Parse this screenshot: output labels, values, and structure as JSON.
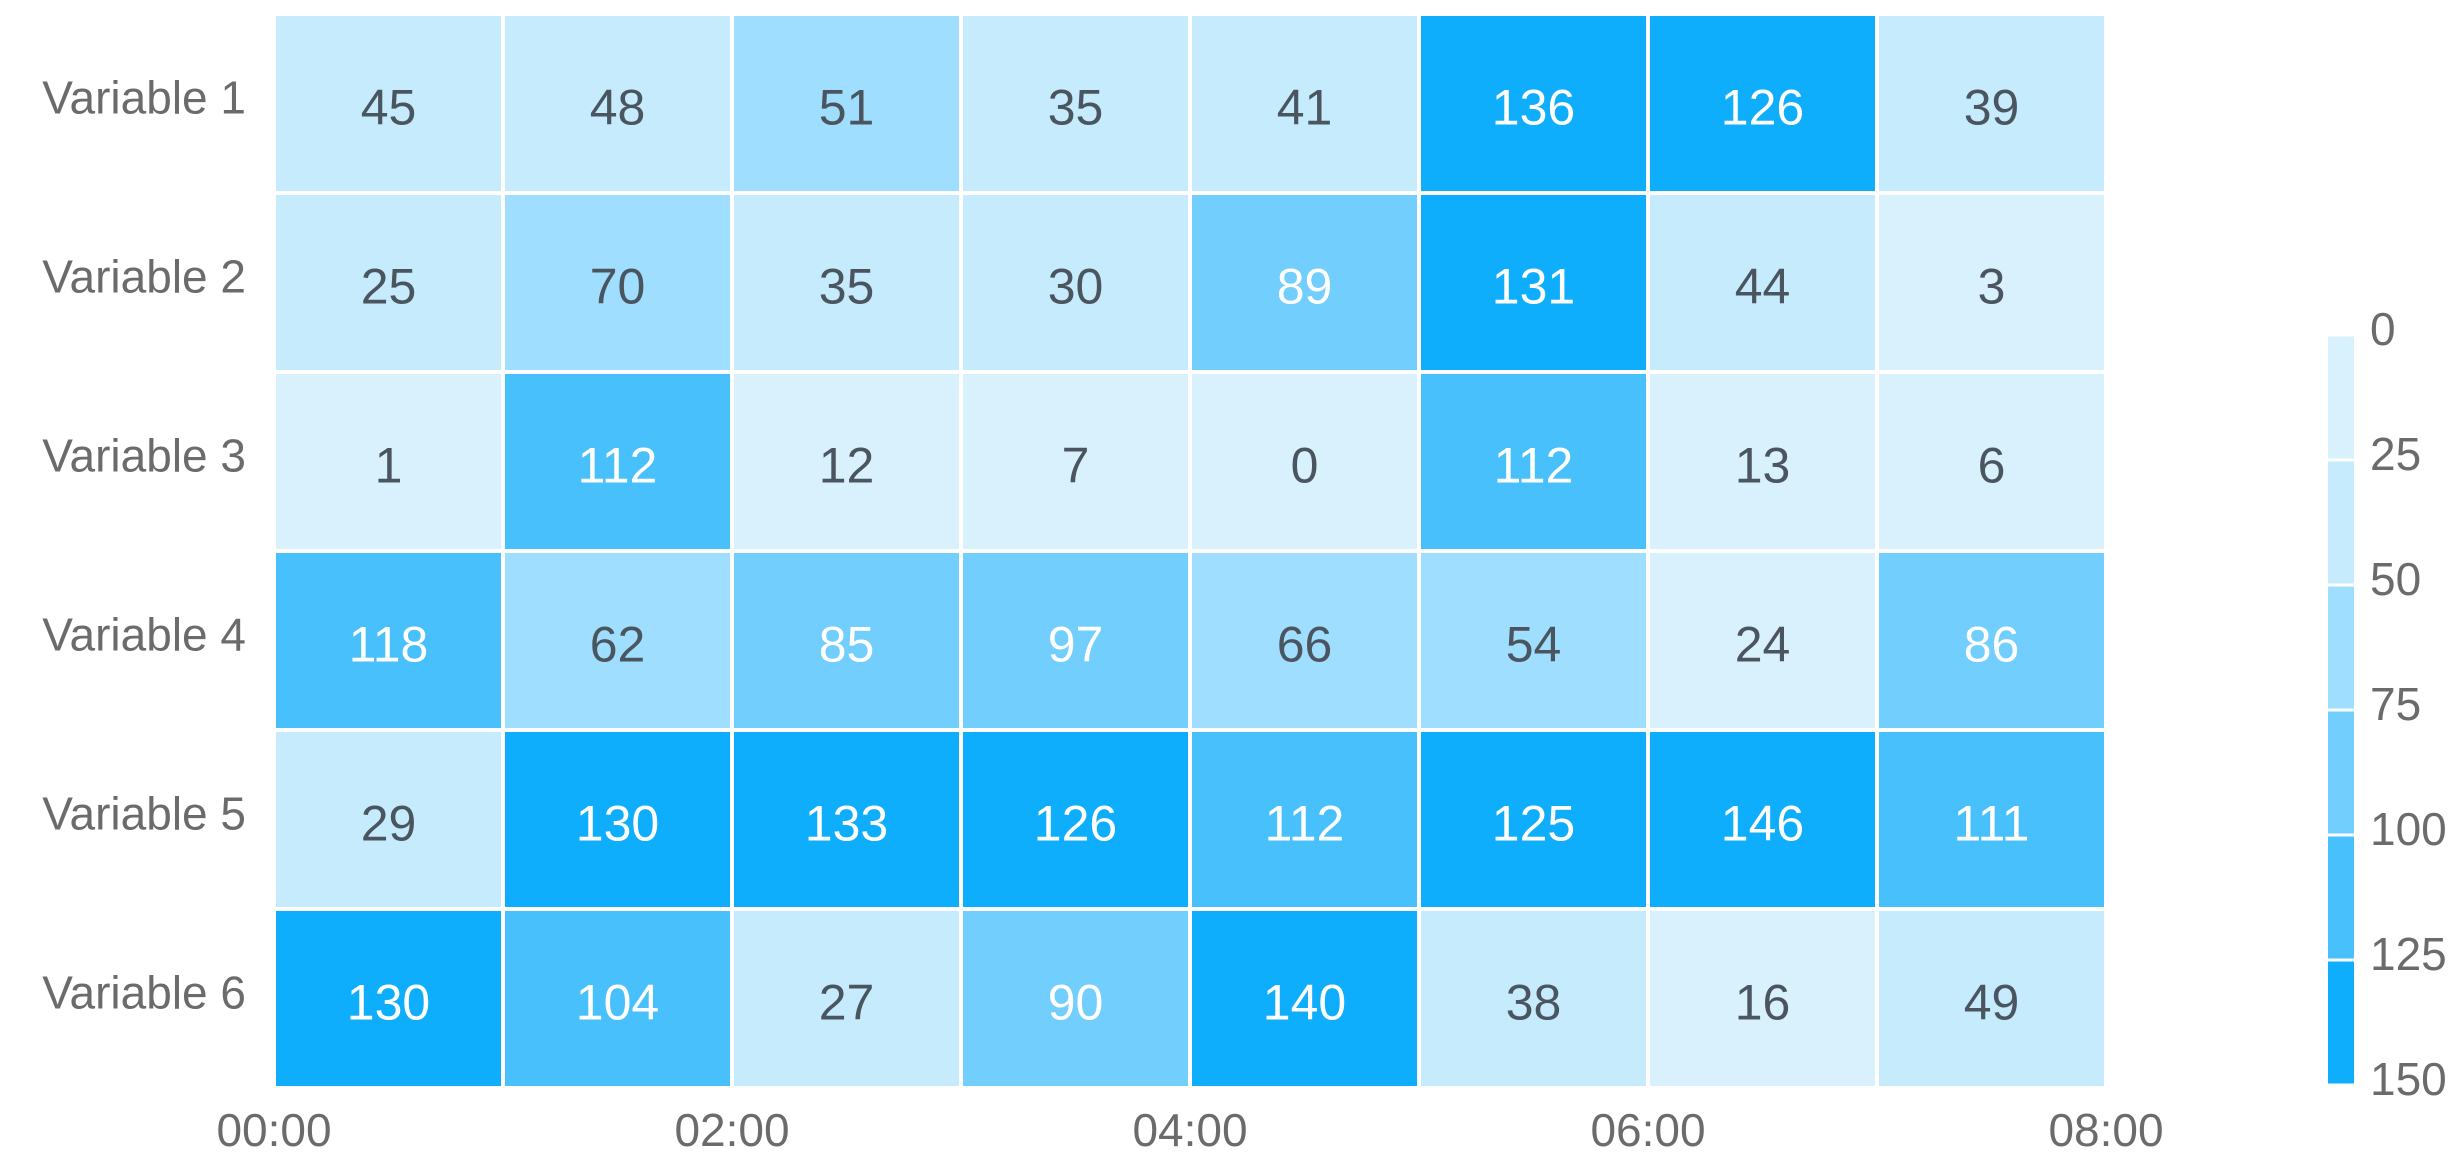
{
  "chart_data": {
    "type": "heatmap",
    "title": "",
    "xlabel": "",
    "ylabel": "",
    "rows": [
      "Variable 1",
      "Variable 2",
      "Variable 3",
      "Variable 4",
      "Variable 5",
      "Variable 6"
    ],
    "x_tick_labels": [
      "00:00",
      "02:00",
      "04:00",
      "06:00",
      "08:00"
    ],
    "columns": 8,
    "values": [
      [
        45,
        48,
        51,
        35,
        41,
        136,
        126,
        39
      ],
      [
        25,
        70,
        35,
        30,
        89,
        131,
        44,
        3
      ],
      [
        1,
        112,
        12,
        7,
        0,
        112,
        13,
        6
      ],
      [
        118,
        62,
        85,
        97,
        66,
        54,
        24,
        86
      ],
      [
        29,
        130,
        133,
        126,
        112,
        125,
        146,
        111
      ],
      [
        130,
        104,
        27,
        90,
        140,
        38,
        16,
        49
      ]
    ],
    "colorbar": {
      "ticks": [
        "0",
        "25",
        "50",
        "75",
        "100",
        "125",
        "150"
      ],
      "range": [
        0,
        150
      ],
      "bins": [
        {
          "from": 0,
          "to": 25,
          "color": "#d9f1fc"
        },
        {
          "from": 25,
          "to": 50,
          "color": "#c5ebfd"
        },
        {
          "from": 50,
          "to": 75,
          "color": "#9fdefe"
        },
        {
          "from": 75,
          "to": 100,
          "color": "#72cefd"
        },
        {
          "from": 100,
          "to": 125,
          "color": "#48c0fc"
        },
        {
          "from": 125,
          "to": 150,
          "color": "#0eaefc"
        }
      ],
      "placement": "right"
    },
    "label_color_dark": "#4a5560",
    "label_color_light": "#ffffff",
    "grid_color": "#ffffff"
  }
}
